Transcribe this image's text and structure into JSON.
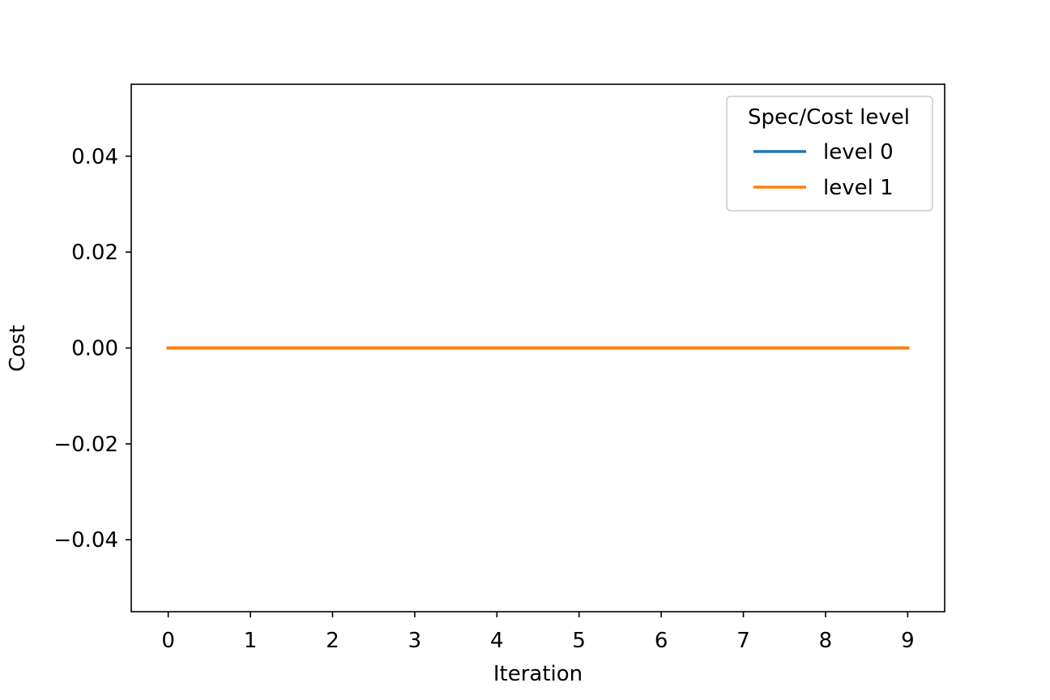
{
  "chart_data": {
    "type": "line",
    "xlabel": "Iteration",
    "ylabel": "Cost",
    "x": [
      0,
      1,
      2,
      3,
      4,
      5,
      6,
      7,
      8,
      9
    ],
    "xticks": [
      "0",
      "1",
      "2",
      "3",
      "4",
      "5",
      "6",
      "7",
      "8",
      "9"
    ],
    "yticks": [
      "0.04",
      "0.02",
      "0.00",
      "−0.02",
      "−0.04"
    ],
    "ytick_values": [
      0.04,
      0.02,
      0.0,
      -0.02,
      -0.04
    ],
    "xlim": [
      -0.45,
      9.45
    ],
    "ylim": [
      -0.055,
      0.055
    ],
    "series": [
      {
        "name": "level 0",
        "color": "#1f77b4",
        "values": [
          0,
          0,
          0,
          0,
          0,
          0,
          0,
          0,
          0,
          0
        ]
      },
      {
        "name": "level 1",
        "color": "#ff7f0e",
        "values": [
          0,
          0,
          0,
          0,
          0,
          0,
          0,
          0,
          0,
          0
        ]
      }
    ],
    "legend": {
      "title": "Spec/Cost level",
      "placement": "top-right"
    },
    "grid": false
  }
}
